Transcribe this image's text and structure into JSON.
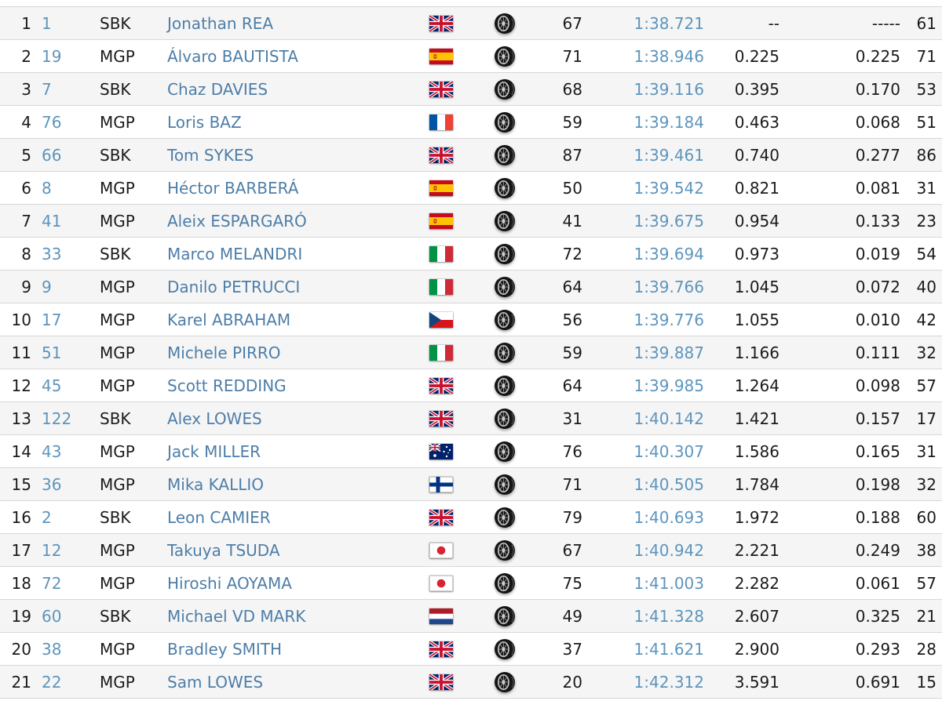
{
  "colors": {
    "rider_name_link": "#4d7ea8",
    "rider_number_link": "#5d95bd",
    "lap_time_link": "#5d95bd",
    "text": "#1b1b1b",
    "row_bg": "#ffffff",
    "row_shaded_bg": "#f5f5f5",
    "separator": "#d7d7d7"
  },
  "icons": {
    "tire": "tire-icon",
    "flags_used": [
      "gb",
      "es",
      "fr",
      "it",
      "cz",
      "au",
      "fi",
      "jp",
      "nl"
    ]
  },
  "table": {
    "columns": [
      "position",
      "rider_number",
      "class",
      "rider_name",
      "nationality_flag",
      "tyre",
      "laps",
      "best_time",
      "gap",
      "diff",
      "best_lap_no"
    ],
    "rows": [
      {
        "pos": "1",
        "num": "1",
        "cls": "SBK",
        "name": "Jonathan REA",
        "nat": "gb",
        "laps": "67",
        "time": "1:38.721",
        "gap": "--",
        "diff": "-----",
        "extra": "61"
      },
      {
        "pos": "2",
        "num": "19",
        "cls": "MGP",
        "name": "Álvaro BAUTISTA",
        "nat": "es",
        "laps": "71",
        "time": "1:38.946",
        "gap": "0.225",
        "diff": "0.225",
        "extra": "71"
      },
      {
        "pos": "3",
        "num": "7",
        "cls": "SBK",
        "name": "Chaz DAVIES",
        "nat": "gb",
        "laps": "68",
        "time": "1:39.116",
        "gap": "0.395",
        "diff": "0.170",
        "extra": "53"
      },
      {
        "pos": "4",
        "num": "76",
        "cls": "MGP",
        "name": "Loris BAZ",
        "nat": "fr",
        "laps": "59",
        "time": "1:39.184",
        "gap": "0.463",
        "diff": "0.068",
        "extra": "51"
      },
      {
        "pos": "5",
        "num": "66",
        "cls": "SBK",
        "name": "Tom SYKES",
        "nat": "gb",
        "laps": "87",
        "time": "1:39.461",
        "gap": "0.740",
        "diff": "0.277",
        "extra": "86"
      },
      {
        "pos": "6",
        "num": "8",
        "cls": "MGP",
        "name": "Héctor BARBERÁ",
        "nat": "es",
        "laps": "50",
        "time": "1:39.542",
        "gap": "0.821",
        "diff": "0.081",
        "extra": "31"
      },
      {
        "pos": "7",
        "num": "41",
        "cls": "MGP",
        "name": "Aleix ESPARGARÓ",
        "nat": "es",
        "laps": "41",
        "time": "1:39.675",
        "gap": "0.954",
        "diff": "0.133",
        "extra": "23"
      },
      {
        "pos": "8",
        "num": "33",
        "cls": "SBK",
        "name": "Marco MELANDRI",
        "nat": "it",
        "laps": "72",
        "time": "1:39.694",
        "gap": "0.973",
        "diff": "0.019",
        "extra": "54"
      },
      {
        "pos": "9",
        "num": "9",
        "cls": "MGP",
        "name": "Danilo PETRUCCI",
        "nat": "it",
        "laps": "64",
        "time": "1:39.766",
        "gap": "1.045",
        "diff": "0.072",
        "extra": "40"
      },
      {
        "pos": "10",
        "num": "17",
        "cls": "MGP",
        "name": "Karel ABRAHAM",
        "nat": "cz",
        "laps": "56",
        "time": "1:39.776",
        "gap": "1.055",
        "diff": "0.010",
        "extra": "42"
      },
      {
        "pos": "11",
        "num": "51",
        "cls": "MGP",
        "name": "Michele PIRRO",
        "nat": "it",
        "laps": "59",
        "time": "1:39.887",
        "gap": "1.166",
        "diff": "0.111",
        "extra": "32"
      },
      {
        "pos": "12",
        "num": "45",
        "cls": "MGP",
        "name": "Scott REDDING",
        "nat": "gb",
        "laps": "64",
        "time": "1:39.985",
        "gap": "1.264",
        "diff": "0.098",
        "extra": "57"
      },
      {
        "pos": "13",
        "num": "122",
        "cls": "SBK",
        "name": "Alex LOWES",
        "nat": "gb",
        "laps": "31",
        "time": "1:40.142",
        "gap": "1.421",
        "diff": "0.157",
        "extra": "17"
      },
      {
        "pos": "14",
        "num": "43",
        "cls": "MGP",
        "name": "Jack MILLER",
        "nat": "au",
        "laps": "76",
        "time": "1:40.307",
        "gap": "1.586",
        "diff": "0.165",
        "extra": "31"
      },
      {
        "pos": "15",
        "num": "36",
        "cls": "MGP",
        "name": "Mika KALLIO",
        "nat": "fi",
        "laps": "71",
        "time": "1:40.505",
        "gap": "1.784",
        "diff": "0.198",
        "extra": "32"
      },
      {
        "pos": "16",
        "num": "2",
        "cls": "SBK",
        "name": "Leon CAMIER",
        "nat": "gb",
        "laps": "79",
        "time": "1:40.693",
        "gap": "1.972",
        "diff": "0.188",
        "extra": "60"
      },
      {
        "pos": "17",
        "num": "12",
        "cls": "MGP",
        "name": "Takuya TSUDA",
        "nat": "jp",
        "laps": "67",
        "time": "1:40.942",
        "gap": "2.221",
        "diff": "0.249",
        "extra": "38"
      },
      {
        "pos": "18",
        "num": "72",
        "cls": "MGP",
        "name": "Hiroshi AOYAMA",
        "nat": "jp",
        "laps": "75",
        "time": "1:41.003",
        "gap": "2.282",
        "diff": "0.061",
        "extra": "57"
      },
      {
        "pos": "19",
        "num": "60",
        "cls": "SBK",
        "name": "Michael VD MARK",
        "nat": "nl",
        "laps": "49",
        "time": "1:41.328",
        "gap": "2.607",
        "diff": "0.325",
        "extra": "21"
      },
      {
        "pos": "20",
        "num": "38",
        "cls": "MGP",
        "name": "Bradley SMITH",
        "nat": "gb",
        "laps": "37",
        "time": "1:41.621",
        "gap": "2.900",
        "diff": "0.293",
        "extra": "28"
      },
      {
        "pos": "21",
        "num": "22",
        "cls": "MGP",
        "name": "Sam LOWES",
        "nat": "gb",
        "laps": "20",
        "time": "1:42.312",
        "gap": "3.591",
        "diff": "0.691",
        "extra": "15"
      }
    ]
  }
}
